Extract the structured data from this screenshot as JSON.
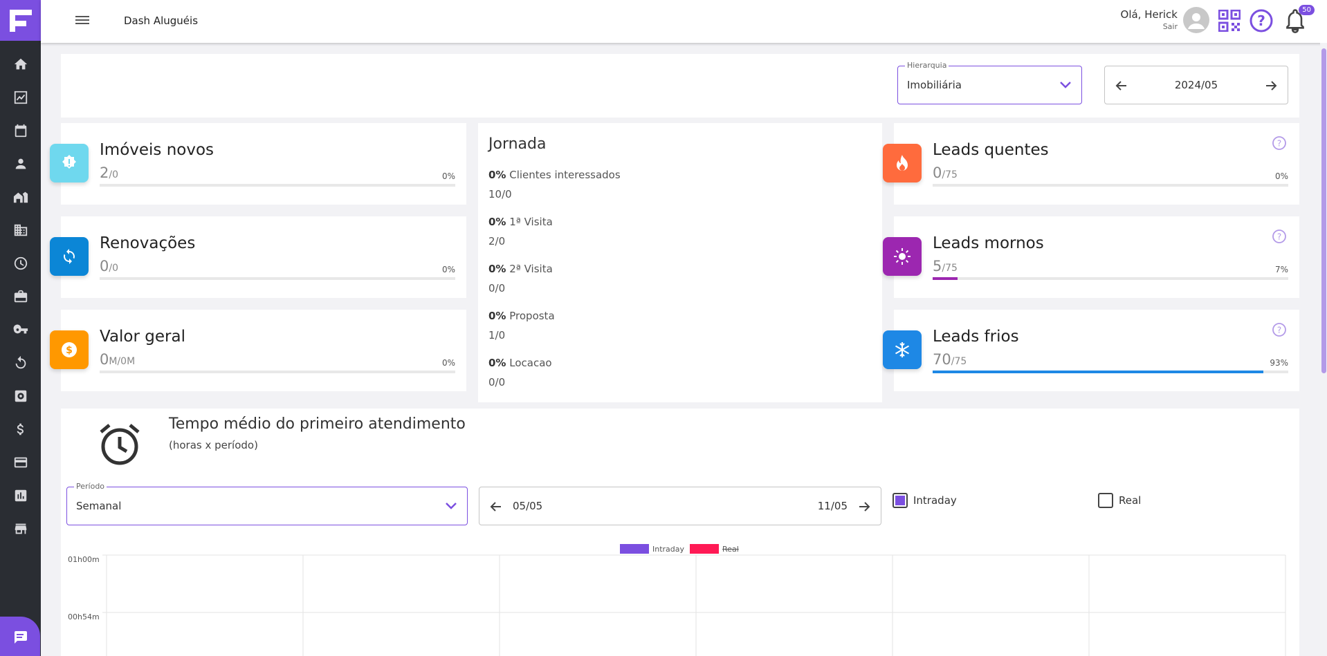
{
  "header": {
    "title": "Dash Aluguéis",
    "greeting": "Olá, Herick",
    "logout": "Sair",
    "notifications_count": "50"
  },
  "filters": {
    "hierarchy_label": "Hierarquia",
    "hierarchy_value": "Imobiliária",
    "month": "2024/05"
  },
  "cards": {
    "imoveis": {
      "title": "Imóveis novos",
      "value": "2",
      "total": "/0",
      "pct": "0%",
      "fill": 0,
      "color": "#6fd8ee"
    },
    "renovacoes": {
      "title": "Renovações",
      "value": "0",
      "total": "/0",
      "pct": "0%",
      "fill": 0,
      "color": "#0b86d6"
    },
    "valor": {
      "title": "Valor geral",
      "value": "0",
      "total": "M/0M",
      "pct": "0%",
      "fill": 0,
      "color": "#ff9800"
    },
    "quentes": {
      "title": "Leads quentes",
      "value": "0",
      "total": "/75",
      "pct": "0%",
      "fill": 0,
      "color": "#ff6b3d"
    },
    "mornos": {
      "title": "Leads mornos",
      "value": "5",
      "total": "/75",
      "pct": "7%",
      "fill": 7,
      "color": "#9c27b0"
    },
    "frios": {
      "title": "Leads frios",
      "value": "70",
      "total": "/75",
      "pct": "93%",
      "fill": 93,
      "color": "#1e88e5"
    }
  },
  "jornada": {
    "title": "Jornada",
    "items": [
      {
        "pct": "0%",
        "label": "Clientes interessados",
        "value": "10/0"
      },
      {
        "pct": "0%",
        "label": "1ª Visita",
        "value": "2/0"
      },
      {
        "pct": "0%",
        "label": "2ª Visita",
        "value": "0/0"
      },
      {
        "pct": "0%",
        "label": "Proposta",
        "value": "1/0"
      },
      {
        "pct": "0%",
        "label": "Locacao",
        "value": "0/0"
      }
    ]
  },
  "tempo": {
    "title": "Tempo médio do primeiro atendimento",
    "subtitle": "(horas x período)",
    "period_label": "Período",
    "period_value": "Semanal",
    "range_start": "05/05",
    "range_end": "11/05",
    "intraday_label": "Intraday",
    "intraday_checked": true,
    "real_label": "Real",
    "real_checked": false
  },
  "chart_data": {
    "type": "line",
    "series": [
      {
        "name": "Intraday",
        "color": "#7b4fe0",
        "hidden": false
      },
      {
        "name": "Real",
        "color": "#ff1a55",
        "hidden": true
      }
    ],
    "yticks": [
      "01h00m",
      "00h54m"
    ]
  }
}
